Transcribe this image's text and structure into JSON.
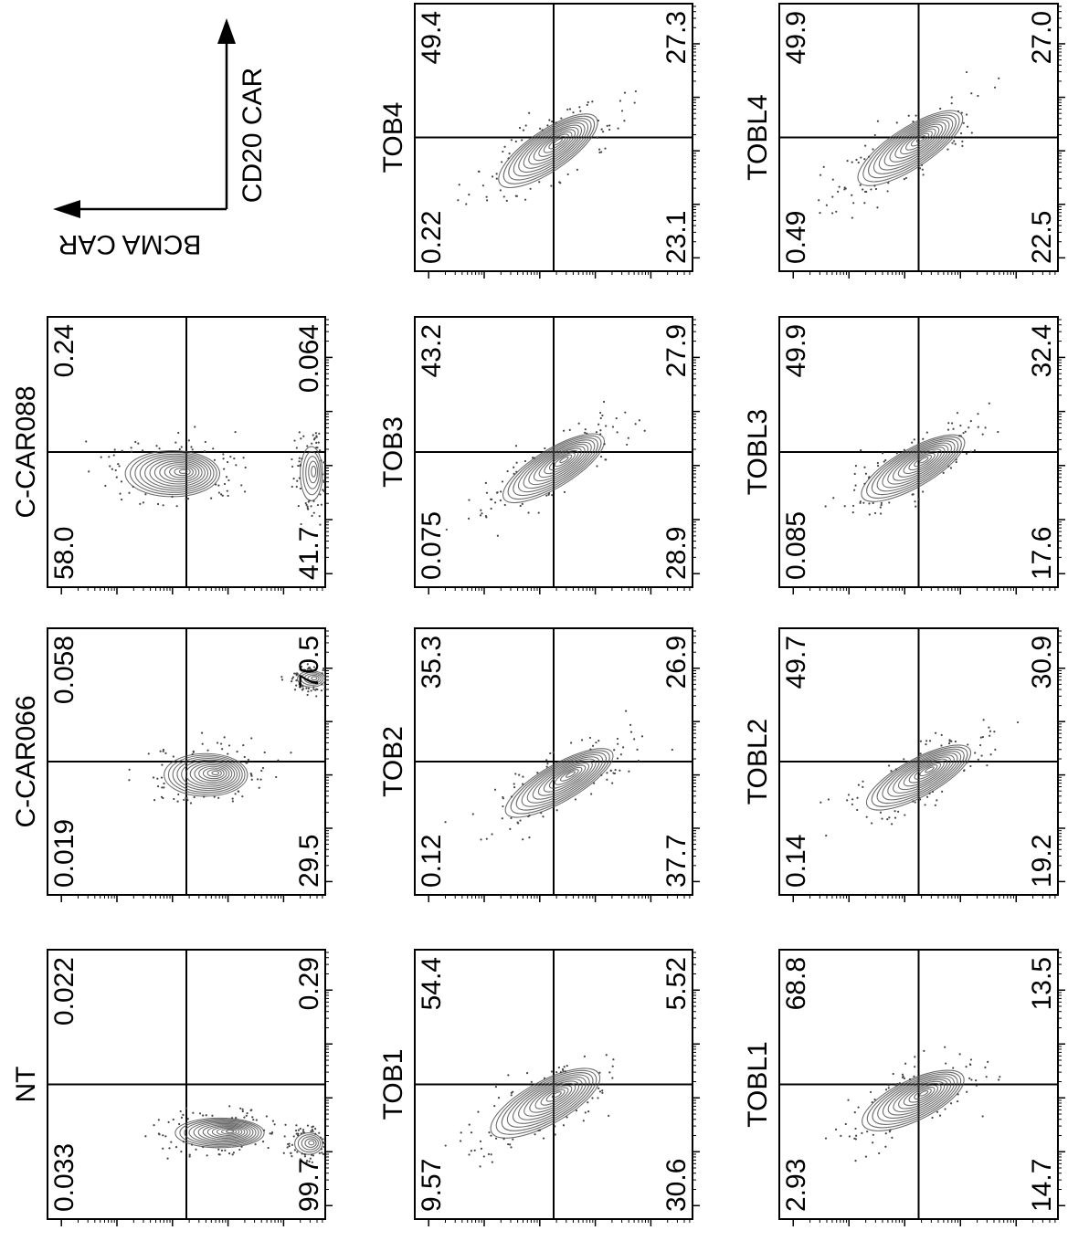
{
  "chart_data": {
    "type": "scatter",
    "description_axes": {
      "x_label": "BCMA CAR",
      "y_label": "CD20 CAR"
    },
    "panels": [
      {
        "name": "NT",
        "row": 0,
        "col": 0,
        "quadrants": {
          "top_left": "0.022",
          "top_right": "0.29",
          "bottom_left": "0.033",
          "bottom_right": "99.7"
        }
      },
      {
        "name": "C-CAR066",
        "row": 0,
        "col": 1,
        "quadrants": {
          "top_left": "0.058",
          "top_right": "70.5",
          "bottom_left": "0.019",
          "bottom_right": "29.5"
        }
      },
      {
        "name": "C-CAR088",
        "row": 0,
        "col": 2,
        "quadrants": {
          "top_left": "0.24",
          "top_right": "0.064",
          "bottom_left": "58.0",
          "bottom_right": "41.7"
        }
      },
      {
        "name": "TOB1",
        "row": 1,
        "col": 0,
        "quadrants": {
          "top_left": "54.4",
          "top_right": "5.52",
          "bottom_left": "9.57",
          "bottom_right": "30.6"
        }
      },
      {
        "name": "TOB2",
        "row": 1,
        "col": 1,
        "quadrants": {
          "top_left": "35.3",
          "top_right": "26.9",
          "bottom_left": "0.12",
          "bottom_right": "37.7"
        }
      },
      {
        "name": "TOB3",
        "row": 1,
        "col": 2,
        "quadrants": {
          "top_left": "43.2",
          "top_right": "27.9",
          "bottom_left": "0.075",
          "bottom_right": "28.9"
        }
      },
      {
        "name": "TOB4",
        "row": 1,
        "col": 3,
        "quadrants": {
          "top_left": "49.4",
          "top_right": "27.3",
          "bottom_left": "0.22",
          "bottom_right": "23.1"
        }
      },
      {
        "name": "TOBL1",
        "row": 2,
        "col": 0,
        "quadrants": {
          "top_left": "68.8",
          "top_right": "13.5",
          "bottom_left": "2.93",
          "bottom_right": "14.7"
        }
      },
      {
        "name": "TOBL2",
        "row": 2,
        "col": 1,
        "quadrants": {
          "top_left": "49.7",
          "top_right": "30.9",
          "bottom_left": "0.14",
          "bottom_right": "19.2"
        }
      },
      {
        "name": "TOBL3",
        "row": 2,
        "col": 2,
        "quadrants": {
          "top_left": "49.9",
          "top_right": "32.4",
          "bottom_left": "0.085",
          "bottom_right": "17.6"
        }
      },
      {
        "name": "TOBL4",
        "row": 2,
        "col": 3,
        "quadrants": {
          "top_left": "49.9",
          "top_right": "27.0",
          "bottom_left": "0.49",
          "bottom_right": "22.5"
        }
      }
    ],
    "grid": false,
    "legend": "none",
    "orientation": "rotated-90-ccw",
    "colors": {
      "axis": "#000000",
      "contour": "#555555",
      "dots": "#444444"
    }
  }
}
